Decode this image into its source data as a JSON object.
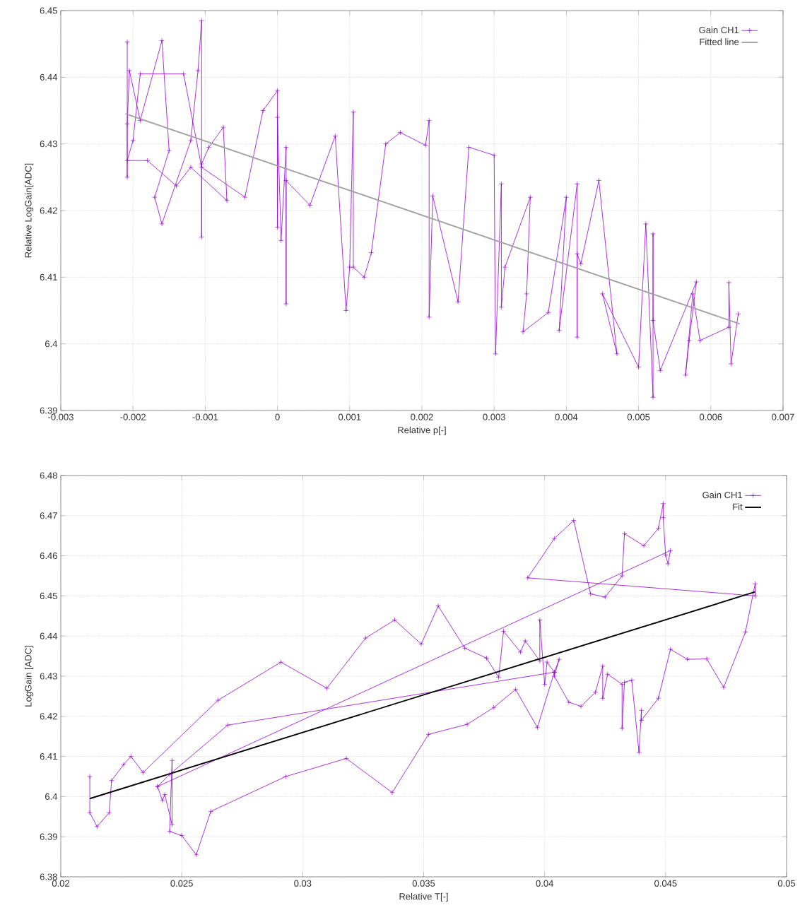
{
  "chart_data": [
    {
      "type": "line",
      "xlabel": "Relative p[-]",
      "ylabel": "Relative LogGain[ADC]",
      "xlim": [
        -0.003,
        0.007
      ],
      "ylim": [
        6.39,
        6.45
      ],
      "xticks": [
        -0.003,
        -0.002,
        -0.001,
        0,
        0.001,
        0.002,
        0.003,
        0.004,
        0.005,
        0.006,
        0.007
      ],
      "yticks": [
        6.39,
        6.4,
        6.41,
        6.42,
        6.43,
        6.44,
        6.45
      ],
      "grid": true,
      "legend": "top right",
      "series": [
        {
          "name": "Gain CH1",
          "color": "#9400d3",
          "marker": "cross",
          "x": [
            -0.00208,
            -0.00208,
            -0.00208,
            -0.00205,
            -0.0019,
            -0.0016,
            -0.0015,
            -0.0017,
            -0.0016,
            -0.0012,
            -0.0011,
            -0.00105,
            -0.00105,
            -0.00105,
            -0.00095,
            -0.00075,
            -0.0007,
            -0.0012,
            -0.0014,
            -0.0018,
            -0.00208,
            -0.002,
            -0.0019,
            -0.0013,
            -0.00105,
            -0.00045,
            -0.0002,
            0.0,
            0.0,
            0.0,
            5e-05,
            0.00012,
            0.00012,
            0.00012,
            0.00045,
            0.0008,
            0.00095,
            0.001,
            0.00105,
            0.00105,
            0.0012,
            0.0013,
            0.0015,
            0.0017,
            0.00205,
            0.0021,
            0.0021,
            0.00215,
            0.0025,
            0.00265,
            0.003,
            0.00302,
            0.0031,
            0.0031,
            0.00315,
            0.0035,
            0.00345,
            0.0034,
            0.00375,
            0.004,
            0.0039,
            0.00415,
            0.00415,
            0.00415,
            0.0042,
            0.00445,
            0.0047,
            0.0045,
            0.005,
            0.0051,
            0.0052,
            0.0052,
            0.0052,
            0.0053,
            0.0058,
            0.0057,
            0.00565,
            0.00575,
            0.00585,
            0.00625,
            0.00625,
            0.00628,
            0.00638
          ],
          "values": [
            6.4453,
            6.425,
            6.433,
            6.441,
            6.4335,
            6.4455,
            6.429,
            6.422,
            6.418,
            6.4305,
            6.441,
            6.4485,
            6.416,
            6.427,
            6.4295,
            6.4325,
            6.4215,
            6.4265,
            6.4237,
            6.4275,
            6.4275,
            6.4305,
            6.4405,
            6.4405,
            6.4265,
            6.422,
            6.435,
            6.438,
            6.4175,
            6.434,
            6.4155,
            6.4295,
            6.406,
            6.4245,
            6.4208,
            6.4312,
            6.405,
            6.4115,
            6.4348,
            6.4115,
            6.41,
            6.4137,
            6.43,
            6.4317,
            6.4298,
            6.4335,
            6.404,
            6.4222,
            6.4063,
            6.4295,
            6.4283,
            6.3985,
            6.424,
            6.4055,
            6.4115,
            6.422,
            6.4075,
            6.4018,
            6.4047,
            6.422,
            6.402,
            6.424,
            6.401,
            6.4135,
            6.412,
            6.4245,
            6.3985,
            6.4075,
            6.3965,
            6.418,
            6.392,
            6.4165,
            6.4035,
            6.396,
            6.4093,
            6.4005,
            6.3953,
            6.4075,
            6.4005,
            6.4025,
            6.4092,
            6.397,
            6.4045
          ]
        },
        {
          "type": "line",
          "name": "Fitted line",
          "color": "#a0a0a0",
          "marker": "none",
          "x": [
            -0.0021,
            0.0064
          ],
          "values": [
            6.4345,
            6.403
          ]
        }
      ]
    },
    {
      "type": "line",
      "xlabel": "Relative T[-]",
      "ylabel": "LogGain [ADC]",
      "xlim": [
        0.02,
        0.05
      ],
      "ylim": [
        6.38,
        6.48
      ],
      "xticks": [
        0.02,
        0.025,
        0.03,
        0.035,
        0.04,
        0.045,
        0.05
      ],
      "yticks": [
        6.38,
        6.39,
        6.4,
        6.41,
        6.42,
        6.43,
        6.44,
        6.45,
        6.46,
        6.47,
        6.48
      ],
      "grid": true,
      "legend": "top right",
      "series": [
        {
          "name": "Gain CH1",
          "color": "#9400d3",
          "marker": "cross",
          "x": [
            0.0212,
            0.0212,
            0.0215,
            0.022,
            0.0221,
            0.0226,
            0.0229,
            0.0234,
            0.0265,
            0.0291,
            0.031,
            0.0326,
            0.0338,
            0.0349,
            0.0356,
            0.0367,
            0.0376,
            0.0381,
            0.0383,
            0.039,
            0.0392,
            0.0398,
            0.0398,
            0.04,
            0.0401,
            0.0404,
            0.0406,
            0.0404,
            0.041,
            0.0415,
            0.0421,
            0.0424,
            0.0424,
            0.0426,
            0.0432,
            0.0432,
            0.0433,
            0.0436,
            0.0439,
            0.044,
            0.044,
            0.0447,
            0.0452,
            0.0459,
            0.0467,
            0.0474,
            0.0483,
            0.0487,
            0.0487,
            0.0393,
            0.0404,
            0.0412,
            0.0419,
            0.0425,
            0.0432,
            0.0433,
            0.0441,
            0.0447,
            0.0449,
            0.0449,
            0.045,
            0.0451,
            0.0452,
            0.024,
            0.0242,
            0.0243,
            0.0246,
            0.0246,
            0.0245,
            0.025,
            0.0256,
            0.0262,
            0.0293,
            0.0318,
            0.0337,
            0.0352,
            0.0368,
            0.0379,
            0.0388,
            0.0397,
            0.0404,
            0.0269,
            0.0245,
            0.024
          ],
          "values": [
            6.405,
            6.396,
            6.3925,
            6.396,
            6.404,
            6.408,
            6.41,
            6.406,
            6.424,
            6.4335,
            6.427,
            6.4395,
            6.444,
            6.438,
            6.4475,
            6.437,
            6.4345,
            6.4297,
            6.4412,
            6.436,
            6.4388,
            6.4338,
            6.444,
            6.428,
            6.4335,
            6.431,
            6.4342,
            6.43,
            6.4235,
            6.4225,
            6.426,
            6.4325,
            6.4245,
            6.4305,
            6.428,
            6.417,
            6.4285,
            6.429,
            6.411,
            6.4215,
            6.419,
            6.4245,
            6.4367,
            6.4342,
            6.4343,
            6.4272,
            6.441,
            6.453,
            6.45,
            6.4545,
            6.4643,
            6.4688,
            6.4505,
            6.4497,
            6.455,
            6.4655,
            6.4625,
            6.4668,
            6.473,
            6.4695,
            6.4602,
            6.458,
            6.4613,
            6.4025,
            6.399,
            6.4005,
            6.393,
            6.409,
            6.3913,
            6.3903,
            6.3855,
            6.3963,
            6.405,
            6.4095,
            6.401,
            6.4155,
            6.418,
            6.4222,
            6.4267,
            6.4172,
            6.431,
            6.4178,
            6.4055,
            6.4025
          ]
        },
        {
          "type": "line",
          "name": "Fit",
          "color": "#000000",
          "marker": "none",
          "x": [
            0.0212,
            0.0487
          ],
          "values": [
            6.3995,
            6.451
          ]
        }
      ]
    }
  ]
}
